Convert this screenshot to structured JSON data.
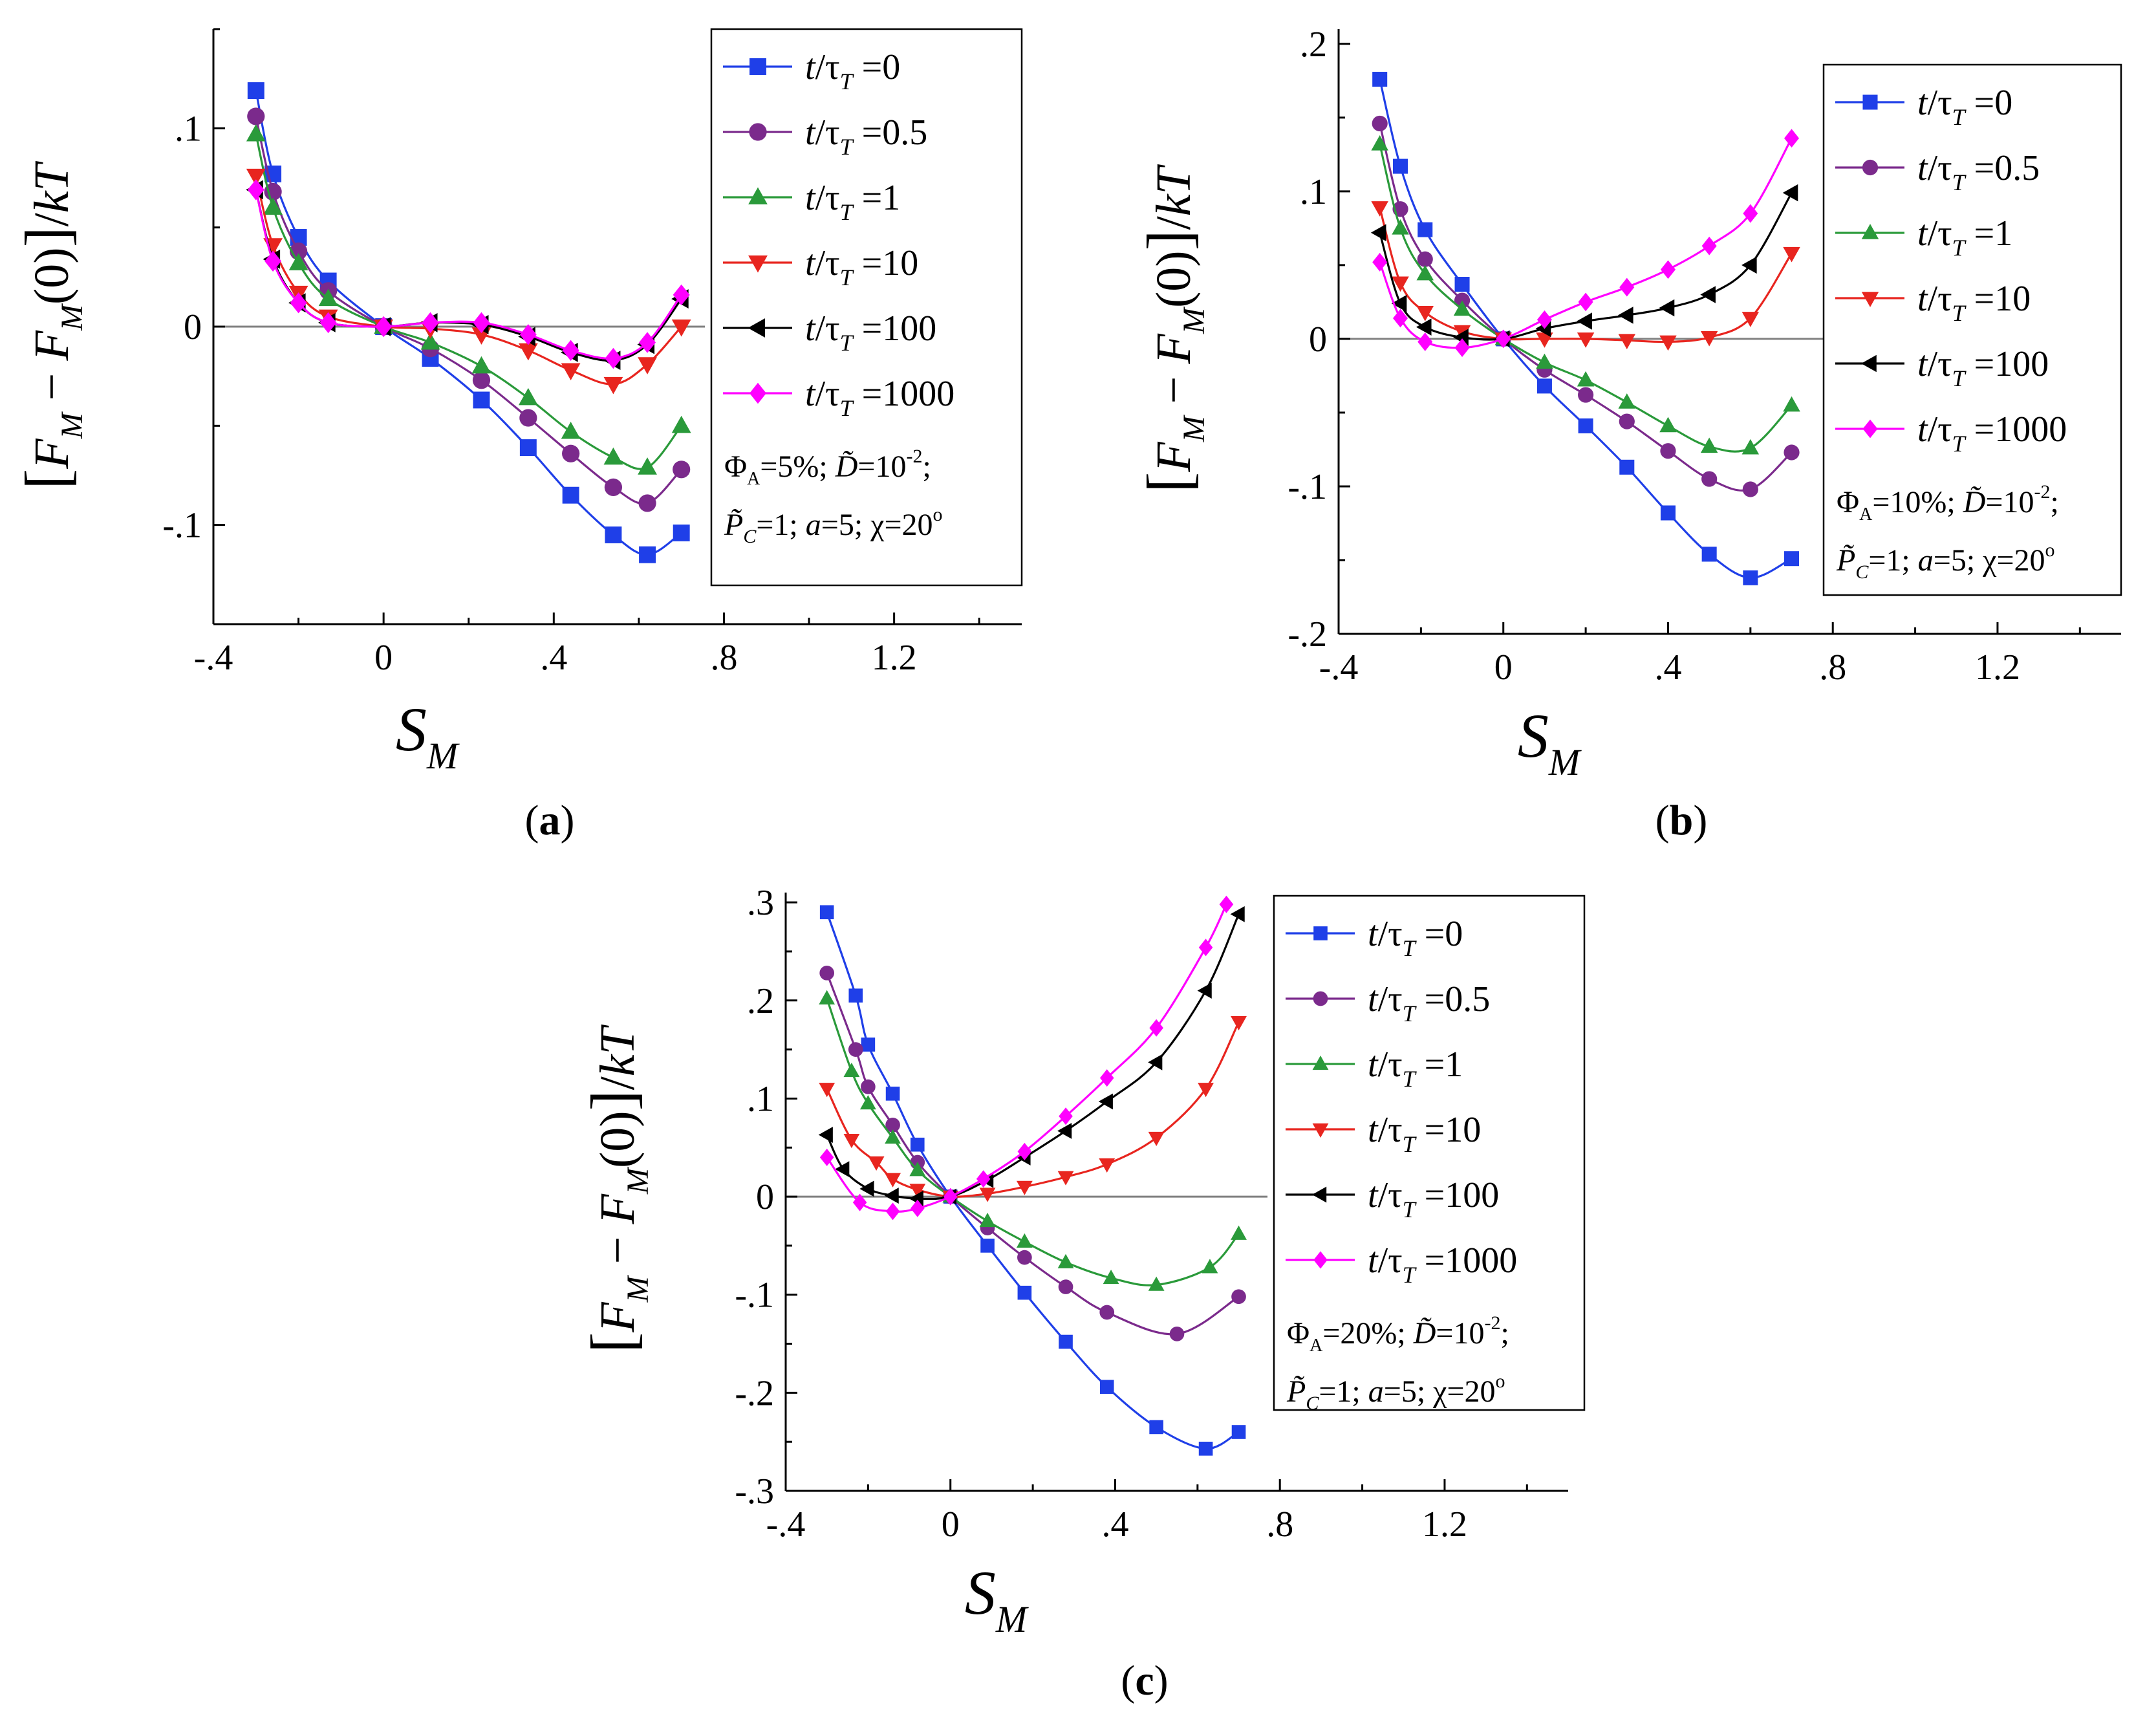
{
  "chart_data": [
    {
      "type": "line",
      "panel": "(a)",
      "panel_label_text": "a",
      "xlabel": "S",
      "xlabel_sub": "M",
      "ylabel": "[F_M − F_M(0)]/kT",
      "xlim": [
        -0.4,
        1.5
      ],
      "ylim": [
        -0.15,
        0.15
      ],
      "xticks": [
        -0.4,
        0,
        0.4,
        0.8,
        1.2
      ],
      "yticks": [
        -0.1,
        0,
        0.1
      ],
      "legend_params": [
        "Φ_A=5%; D̃=10^-2;",
        "P̃_C=1; a=5; χ=20°"
      ],
      "legend_loc": "top-right",
      "series": [
        {
          "name": "t/τ_T =0",
          "color": "#1f3fe8",
          "marker": "square",
          "x": [
            -0.3,
            -0.26,
            -0.2,
            -0.13,
            0,
            0.11,
            0.23,
            0.34,
            0.44,
            0.54,
            0.62,
            0.7
          ],
          "y": [
            0.119,
            0.077,
            0.045,
            0.023,
            0,
            -0.016,
            -0.037,
            -0.061,
            -0.085,
            -0.105,
            -0.115,
            -0.104
          ]
        },
        {
          "name": "t/τ_T =0.5",
          "color": "#7b2a8c",
          "marker": "circle",
          "x": [
            -0.3,
            -0.26,
            -0.2,
            -0.13,
            0,
            0.11,
            0.23,
            0.34,
            0.44,
            0.54,
            0.62,
            0.7
          ],
          "y": [
            0.106,
            0.068,
            0.038,
            0.018,
            0,
            -0.011,
            -0.027,
            -0.046,
            -0.064,
            -0.081,
            -0.089,
            -0.072
          ]
        },
        {
          "name": "t/τ_T =1",
          "color": "#2a9a3a",
          "marker": "triangle-up",
          "x": [
            -0.3,
            -0.26,
            -0.2,
            -0.13,
            0,
            0.11,
            0.23,
            0.34,
            0.44,
            0.54,
            0.62,
            0.7
          ],
          "y": [
            0.097,
            0.06,
            0.032,
            0.014,
            0,
            -0.008,
            -0.02,
            -0.036,
            -0.053,
            -0.066,
            -0.071,
            -0.05
          ]
        },
        {
          "name": "t/τ_T =10",
          "color": "#e8251f",
          "marker": "triangle-down",
          "x": [
            -0.3,
            -0.26,
            -0.2,
            -0.13,
            0,
            0.11,
            0.23,
            0.34,
            0.44,
            0.54,
            0.62,
            0.7
          ],
          "y": [
            0.076,
            0.041,
            0.017,
            0.005,
            0,
            -0.001,
            -0.004,
            -0.012,
            -0.022,
            -0.029,
            -0.019,
            0.0
          ]
        },
        {
          "name": "t/τ_T =100",
          "color": "#000000",
          "marker": "triangle-left",
          "x": [
            -0.3,
            -0.26,
            -0.2,
            -0.13,
            0,
            0.11,
            0.23,
            0.34,
            0.44,
            0.54,
            0.62,
            0.7
          ],
          "y": [
            0.069,
            0.034,
            0.012,
            0.002,
            0,
            0.002,
            0.001,
            -0.005,
            -0.013,
            -0.017,
            -0.009,
            0.014
          ]
        },
        {
          "name": "t/τ_T =1000",
          "color": "#ff00ff",
          "marker": "diamond",
          "x": [
            -0.3,
            -0.26,
            -0.2,
            -0.13,
            0,
            0.11,
            0.23,
            0.34,
            0.44,
            0.54,
            0.62,
            0.7
          ],
          "y": [
            0.069,
            0.033,
            0.012,
            0.002,
            0,
            0.002,
            0.002,
            -0.004,
            -0.012,
            -0.016,
            -0.008,
            0.016
          ]
        }
      ]
    },
    {
      "type": "line",
      "panel": "(b)",
      "panel_label_text": "b",
      "xlabel": "S",
      "xlabel_sub": "M",
      "ylabel": "[F_M − F_M(0)]/kT",
      "xlim": [
        -0.4,
        1.5
      ],
      "ylim": [
        -0.2,
        0.21
      ],
      "xticks": [
        -0.4,
        0,
        0.4,
        0.8,
        1.2
      ],
      "yticks": [
        -0.2,
        -0.1,
        0,
        0.1,
        0.2
      ],
      "legend_params": [
        "Φ_A=10%; D̃=10^-2;",
        "P̃_C=1; a=5; χ=20°"
      ],
      "legend_loc": "top-right",
      "series": [
        {
          "name": "t/τ_T =0",
          "color": "#1f3fe8",
          "marker": "square",
          "x": [
            -0.3,
            -0.25,
            -0.19,
            -0.1,
            0,
            0.1,
            0.2,
            0.3,
            0.4,
            0.5,
            0.6,
            0.7
          ],
          "y": [
            0.176,
            0.117,
            0.074,
            0.037,
            0,
            -0.032,
            -0.059,
            -0.087,
            -0.118,
            -0.146,
            -0.162,
            -0.149
          ]
        },
        {
          "name": "t/τ_T =0.5",
          "color": "#7b2a8c",
          "marker": "circle",
          "x": [
            -0.3,
            -0.25,
            -0.19,
            -0.1,
            0,
            0.1,
            0.2,
            0.3,
            0.4,
            0.5,
            0.6,
            0.7
          ],
          "y": [
            0.146,
            0.088,
            0.054,
            0.026,
            0,
            -0.021,
            -0.038,
            -0.056,
            -0.076,
            -0.095,
            -0.102,
            -0.077
          ]
        },
        {
          "name": "t/τ_T =1",
          "color": "#2a9a3a",
          "marker": "triangle-up",
          "x": [
            -0.3,
            -0.25,
            -0.19,
            -0.1,
            0,
            0.1,
            0.2,
            0.3,
            0.4,
            0.5,
            0.6,
            0.7
          ],
          "y": [
            0.132,
            0.075,
            0.044,
            0.02,
            0,
            -0.016,
            -0.028,
            -0.043,
            -0.059,
            -0.073,
            -0.074,
            -0.045
          ]
        },
        {
          "name": "t/τ_T =10",
          "color": "#e8251f",
          "marker": "triangle-down",
          "x": [
            -0.3,
            -0.25,
            -0.19,
            -0.1,
            0,
            0.1,
            0.2,
            0.3,
            0.4,
            0.5,
            0.6,
            0.7
          ],
          "y": [
            0.089,
            0.038,
            0.018,
            0.005,
            0,
            0.0,
            0.0,
            -0.001,
            -0.002,
            0.001,
            0.014,
            0.058
          ]
        },
        {
          "name": "t/τ_T =100",
          "color": "#000000",
          "marker": "triangle-left",
          "x": [
            -0.3,
            -0.25,
            -0.19,
            -0.1,
            0,
            0.1,
            0.2,
            0.3,
            0.4,
            0.5,
            0.6,
            0.7
          ],
          "y": [
            0.072,
            0.024,
            0.008,
            0.001,
            0,
            0.007,
            0.012,
            0.016,
            0.021,
            0.03,
            0.05,
            0.099
          ]
        },
        {
          "name": "t/τ_T =1000",
          "color": "#ff00ff",
          "marker": "diamond",
          "x": [
            -0.3,
            -0.25,
            -0.19,
            -0.1,
            0,
            0.1,
            0.2,
            0.3,
            0.4,
            0.5,
            0.6,
            0.7
          ],
          "y": [
            0.052,
            0.014,
            -0.002,
            -0.006,
            0,
            0.013,
            0.025,
            0.035,
            0.047,
            0.063,
            0.085,
            0.136
          ]
        }
      ]
    },
    {
      "type": "line",
      "panel": "(c)",
      "panel_label_text": "c",
      "xlabel": "S",
      "xlabel_sub": "M",
      "ylabel": "[F_M − F_M(0)]/kT",
      "xlim": [
        -0.4,
        1.5
      ],
      "ylim": [
        -0.3,
        0.31
      ],
      "xticks": [
        -0.4,
        0,
        0.4,
        0.8,
        1.2
      ],
      "yticks": [
        -0.3,
        -0.2,
        -0.1,
        0,
        0.1,
        0.2,
        0.3
      ],
      "legend_params": [
        "Φ_A=20%; D̃=10^-2;",
        "P̃_C=1; a=5; χ=20°"
      ],
      "legend_loc": "top-right",
      "series": [
        {
          "name": "t/τ_T =0",
          "color": "#1f3fe8",
          "marker": "square",
          "x": [
            -0.3,
            -0.23,
            -0.2,
            -0.14,
            -0.08,
            0,
            0.09,
            0.18,
            0.28,
            0.38,
            0.5,
            0.62,
            0.7
          ],
          "y": [
            0.29,
            0.205,
            0.155,
            0.105,
            0.053,
            0,
            -0.05,
            -0.098,
            -0.148,
            -0.194,
            -0.235,
            -0.257,
            -0.24
          ]
        },
        {
          "name": "t/τ_T =0.5",
          "color": "#7b2a8c",
          "marker": "circle",
          "x": [
            -0.3,
            -0.23,
            -0.2,
            -0.14,
            -0.08,
            0,
            0.09,
            0.18,
            0.28,
            0.38,
            0.55,
            0.7
          ],
          "y": [
            0.228,
            0.15,
            0.112,
            0.073,
            0.035,
            0,
            -0.032,
            -0.062,
            -0.092,
            -0.118,
            -0.14,
            -0.102
          ]
        },
        {
          "name": "t/τ_T =1",
          "color": "#2a9a3a",
          "marker": "triangle-up",
          "x": [
            -0.3,
            -0.24,
            -0.2,
            -0.14,
            -0.08,
            0,
            0.09,
            0.18,
            0.28,
            0.39,
            0.5,
            0.63,
            0.7
          ],
          "y": [
            0.202,
            0.128,
            0.095,
            0.06,
            0.027,
            0,
            -0.025,
            -0.046,
            -0.067,
            -0.083,
            -0.09,
            -0.072,
            -0.038
          ]
        },
        {
          "name": "t/τ_T =10",
          "color": "#e8251f",
          "marker": "triangle-down",
          "x": [
            -0.3,
            -0.24,
            -0.18,
            -0.14,
            -0.08,
            0,
            0.09,
            0.18,
            0.28,
            0.38,
            0.5,
            0.62,
            0.7
          ],
          "y": [
            0.11,
            0.058,
            0.035,
            0.018,
            0.007,
            0,
            0.003,
            0.01,
            0.02,
            0.033,
            0.06,
            0.11,
            0.178
          ]
        },
        {
          "name": "t/τ_T =100",
          "color": "#000000",
          "marker": "triangle-left",
          "x": [
            -0.3,
            -0.26,
            -0.2,
            -0.14,
            -0.08,
            0,
            0.09,
            0.18,
            0.28,
            0.38,
            0.5,
            0.62,
            0.7
          ],
          "y": [
            0.063,
            0.028,
            0.008,
            0.001,
            -0.002,
            0,
            0.017,
            0.04,
            0.067,
            0.097,
            0.137,
            0.21,
            0.288
          ]
        },
        {
          "name": "t/τ_T =1000",
          "color": "#ff00ff",
          "marker": "diamond",
          "x": [
            -0.3,
            -0.22,
            -0.14,
            -0.08,
            0,
            0.08,
            0.18,
            0.28,
            0.38,
            0.5,
            0.62,
            0.67
          ],
          "y": [
            0.04,
            -0.006,
            -0.015,
            -0.012,
            0,
            0.018,
            0.046,
            0.082,
            0.121,
            0.172,
            0.254,
            0.298
          ]
        }
      ]
    }
  ]
}
